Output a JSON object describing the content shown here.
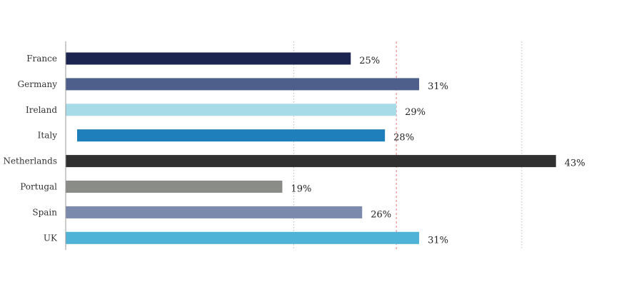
{
  "chart_data": {
    "type": "bar",
    "orientation": "horizontal",
    "title": "",
    "xlabel": "",
    "ylabel": "",
    "categories": [
      "France",
      "Germany",
      "Ireland",
      "Italy",
      "Netherlands",
      "Portugal",
      "Spain",
      "UK"
    ],
    "values": [
      25,
      31,
      29,
      28,
      43,
      19,
      26,
      31
    ],
    "value_labels": [
      "25%",
      "31%",
      "29%",
      "28%",
      "43%",
      "19%",
      "26%",
      "31%"
    ],
    "colors": [
      "#1c2550",
      "#4d5f8a",
      "#a8dbe8",
      "#1f7fba",
      "#303030",
      "#8a8c87",
      "#7b8aac",
      "#4eb3d6"
    ],
    "xlim": [
      0,
      40
    ],
    "gridlines": [
      20,
      40
    ],
    "reference_line": 29,
    "reference_line_color": "#e8797a",
    "grid": true,
    "legend": "none"
  }
}
